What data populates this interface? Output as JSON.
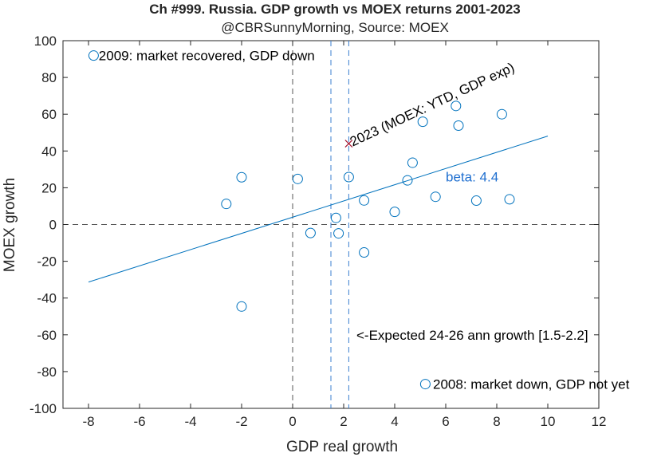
{
  "chart_data": {
    "type": "scatter",
    "title": "Ch #999. Russia. GDP growth vs MOEX returns 2001-2023",
    "subtitle": "@CBRSunnyMorning, Source: MOEX",
    "xlabel": "GDP real growth",
    "ylabel": "MOEX growth",
    "xlim": [
      -9,
      12
    ],
    "ylim": [
      -100,
      100
    ],
    "xticks": [
      -8,
      -6,
      -4,
      -2,
      0,
      2,
      4,
      6,
      8,
      10,
      12
    ],
    "yticks": [
      -100,
      -80,
      -60,
      -40,
      -20,
      0,
      20,
      40,
      60,
      80,
      100
    ],
    "grid": false,
    "series": [
      {
        "marker": "circle",
        "color": "#0072bd",
        "points": [
          {
            "x": -7.8,
            "y": 91.9
          },
          {
            "x": -2.6,
            "y": 11.2
          },
          {
            "x": -2.0,
            "y": 25.7
          },
          {
            "x": -2.0,
            "y": -44.6
          },
          {
            "x": 0.2,
            "y": 24.8
          },
          {
            "x": 0.7,
            "y": -4.6
          },
          {
            "x": 1.7,
            "y": 3.6
          },
          {
            "x": 1.8,
            "y": -4.8
          },
          {
            "x": 2.2,
            "y": 25.8
          },
          {
            "x": 2.8,
            "y": 13.1
          },
          {
            "x": 2.8,
            "y": -15.2
          },
          {
            "x": 4.0,
            "y": 6.9
          },
          {
            "x": 4.5,
            "y": 24.0
          },
          {
            "x": 4.7,
            "y": 33.6
          },
          {
            "x": 5.1,
            "y": 55.9
          },
          {
            "x": 5.6,
            "y": 15.1
          },
          {
            "x": 6.4,
            "y": 64.5
          },
          {
            "x": 6.5,
            "y": 53.8
          },
          {
            "x": 7.2,
            "y": 13.0
          },
          {
            "x": 8.2,
            "y": 60.0
          },
          {
            "x": 8.5,
            "y": 13.7
          },
          {
            "x": 5.2,
            "y": -86.8
          }
        ]
      },
      {
        "marker": "x",
        "color": "#a2142f",
        "points": [
          {
            "x": 2.2,
            "y": 44.0
          }
        ]
      }
    ],
    "fit_line": {
      "color": "#0072bd",
      "x": [
        -8.0,
        10.0
      ],
      "y": [
        -31.3,
        48.1
      ]
    },
    "reference_lines": [
      {
        "axis": "x",
        "value": 0,
        "color": "#555555"
      },
      {
        "axis": "y",
        "value": 0,
        "color": "#555555"
      },
      {
        "axis": "x",
        "value": 1.5,
        "color": "#3a7fd0"
      },
      {
        "axis": "x",
        "value": 2.2,
        "color": "#3a7fd0"
      }
    ],
    "annotations": [
      {
        "text": "2009: market recovered, GDP down",
        "x": -7.6,
        "y": 91.9,
        "rotate": 0,
        "color": "#000000"
      },
      {
        "text": "2023 (MOEX: YTD, GDP exp)",
        "x": 2.3,
        "y": 44.0,
        "rotate": -25,
        "color": "#000000"
      },
      {
        "text": "beta: 4.4",
        "x": 6.0,
        "y": 26.0,
        "rotate": 0,
        "color": "#1f6fd0"
      },
      {
        "text": "<-Expected 24-26 ann growth [1.5-2.2]",
        "x": 2.5,
        "y": -60.0,
        "rotate": 0,
        "color": "#000000"
      },
      {
        "text": "2008: market down, GDP not yet",
        "x": 5.5,
        "y": -86.8,
        "rotate": 0,
        "color": "#000000"
      }
    ]
  }
}
